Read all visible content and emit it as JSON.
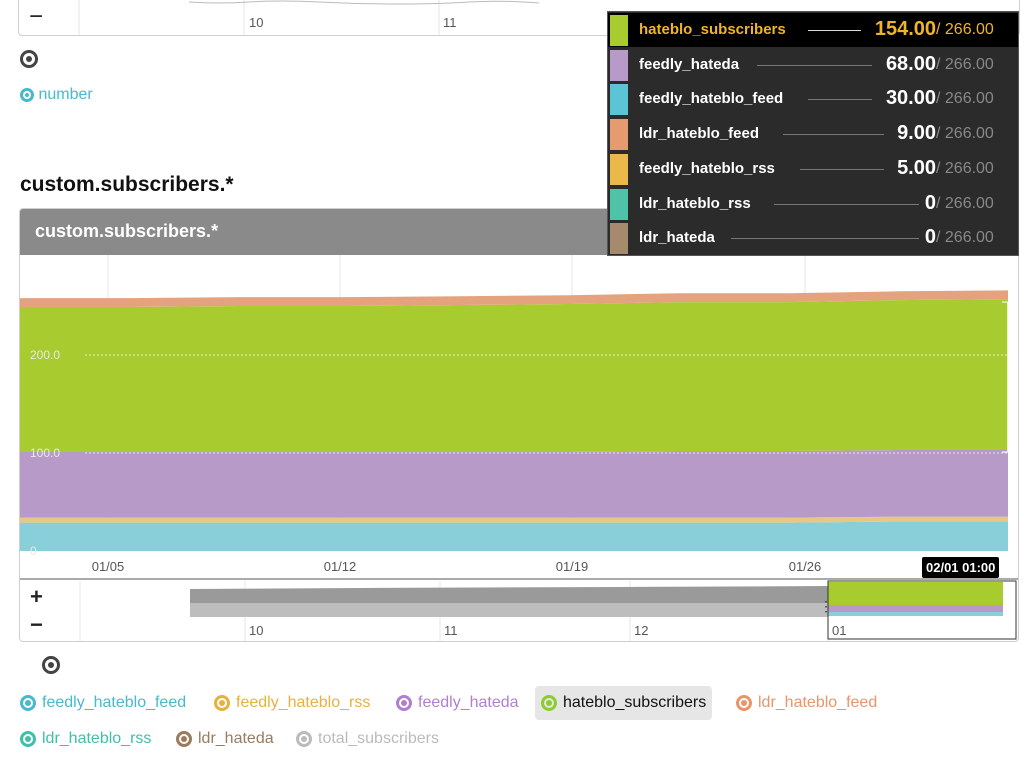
{
  "top_chart": {
    "nav_minus": "−",
    "axis_ticks": [
      "10",
      "11"
    ],
    "series_label": "number",
    "series_color": "#49b9cc"
  },
  "section": {
    "title": "custom.subscribers.*"
  },
  "panel": {
    "header": "custom.subscribers.*"
  },
  "timestamp_badge": "02/01 01:00",
  "navigator": {
    "plus": "+",
    "minus": "−",
    "ticks": [
      "10",
      "11",
      "12",
      "01"
    ]
  },
  "tooltip": {
    "rows": [
      {
        "name": "hateblo_subscribers",
        "value": "154.00",
        "total": "/ 266.00",
        "color": "#a8cc2f",
        "highlight": true
      },
      {
        "name": "feedly_hateda",
        "value": "68.00",
        "total": "/ 266.00",
        "color": "#b89ac9",
        "highlight": false
      },
      {
        "name": "feedly_hateblo_feed",
        "value": "30.00",
        "total": "/ 266.00",
        "color": "#5bc5d6",
        "highlight": false
      },
      {
        "name": "ldr_hateblo_feed",
        "value": "9.00",
        "total": "/ 266.00",
        "color": "#e59a6f",
        "highlight": false
      },
      {
        "name": "feedly_hateblo_rss",
        "value": "5.00",
        "total": "/ 266.00",
        "color": "#eab94a",
        "highlight": false
      },
      {
        "name": "ldr_hateblo_rss",
        "value": "0",
        "total": "/ 266.00",
        "color": "#4fc3a8",
        "highlight": false
      },
      {
        "name": "ldr_hateda",
        "value": "0",
        "total": "/ 266.00",
        "color": "#a68a6d",
        "highlight": false
      }
    ]
  },
  "legend": [
    {
      "label": "feedly_hateblo_feed",
      "color": "#49b9cc",
      "active": false
    },
    {
      "label": "feedly_hateblo_rss",
      "color": "#e6b23c",
      "active": false
    },
    {
      "label": "feedly_hateda",
      "color": "#b07fcf",
      "active": false
    },
    {
      "label": "hateblo_subscribers",
      "color": "#8ccc2f",
      "active": true
    },
    {
      "label": "ldr_hateblo_feed",
      "color": "#e8956a",
      "active": false
    },
    {
      "label": "ldr_hateblo_rss",
      "color": "#3fc0a8",
      "active": false
    },
    {
      "label": "ldr_hateda",
      "color": "#9a7b5e",
      "active": false
    },
    {
      "label": "total_subscribers",
      "color": "#bbbbbb",
      "active": false
    }
  ],
  "chart_data": {
    "type": "area",
    "stacked": true,
    "x_ticks": [
      "01/05",
      "01/12",
      "01/19",
      "01/26"
    ],
    "y_ticks": [
      "0",
      "100.0",
      "200.0"
    ],
    "ylim": [
      0,
      266
    ],
    "grid": true,
    "x": [
      "01/02",
      "01/05",
      "01/08",
      "01/12",
      "01/16",
      "01/19",
      "01/22",
      "01/26",
      "01/29",
      "02/01"
    ],
    "series": [
      {
        "name": "feedly_hateblo_feed",
        "color": "#88cfda",
        "values": [
          29,
          29,
          29,
          29,
          29,
          29,
          29,
          29,
          30,
          30
        ]
      },
      {
        "name": "feedly_hateblo_rss",
        "color": "#e8c880",
        "values": [
          5,
          5,
          5,
          5,
          5,
          5,
          5,
          5,
          5,
          5
        ]
      },
      {
        "name": "feedly_hateda",
        "color": "#b89ac9",
        "values": [
          67,
          67,
          67,
          67,
          67,
          67,
          68,
          68,
          68,
          68
        ]
      },
      {
        "name": "hateblo_subscribers",
        "color": "#a8cc2f",
        "values": [
          148,
          148,
          149,
          149,
          150,
          151,
          152,
          152,
          153,
          154
        ]
      },
      {
        "name": "ldr_hateblo_feed",
        "color": "#e4a37e",
        "values": [
          9,
          9,
          9,
          9,
          9,
          9,
          9,
          9,
          9,
          9
        ]
      }
    ]
  }
}
